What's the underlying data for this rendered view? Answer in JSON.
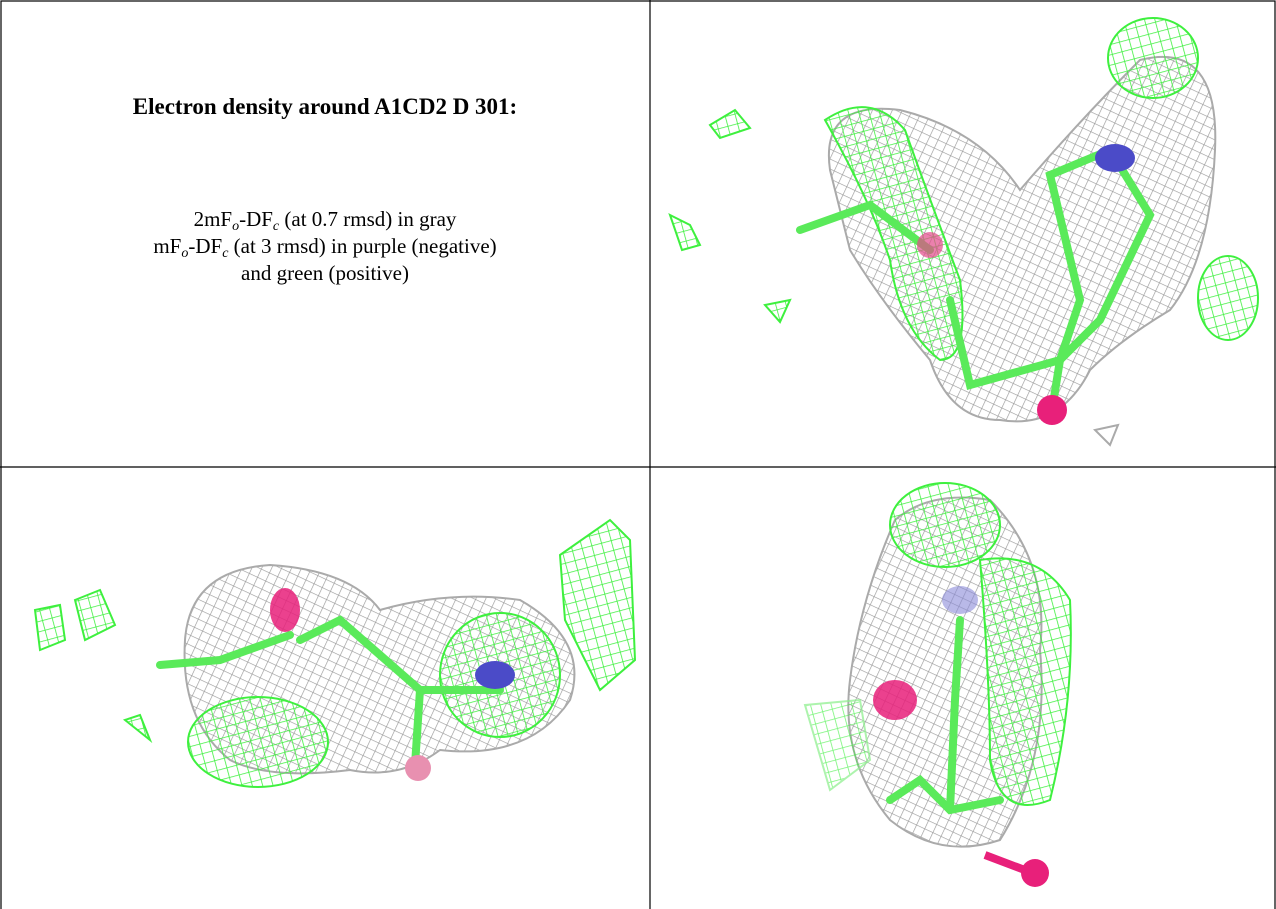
{
  "panel_text": {
    "title": "Electron density around A1CD2 D 301:",
    "lines": [
      [
        "2mF",
        "o",
        "-DF",
        "c",
        " (at 0.7 rmsd) in gray"
      ],
      [
        "mF",
        "o",
        "-DF",
        "c",
        " (at 3 rmsd) in purple (negative)"
      ],
      [
        "and green (positive)"
      ]
    ]
  }
}
